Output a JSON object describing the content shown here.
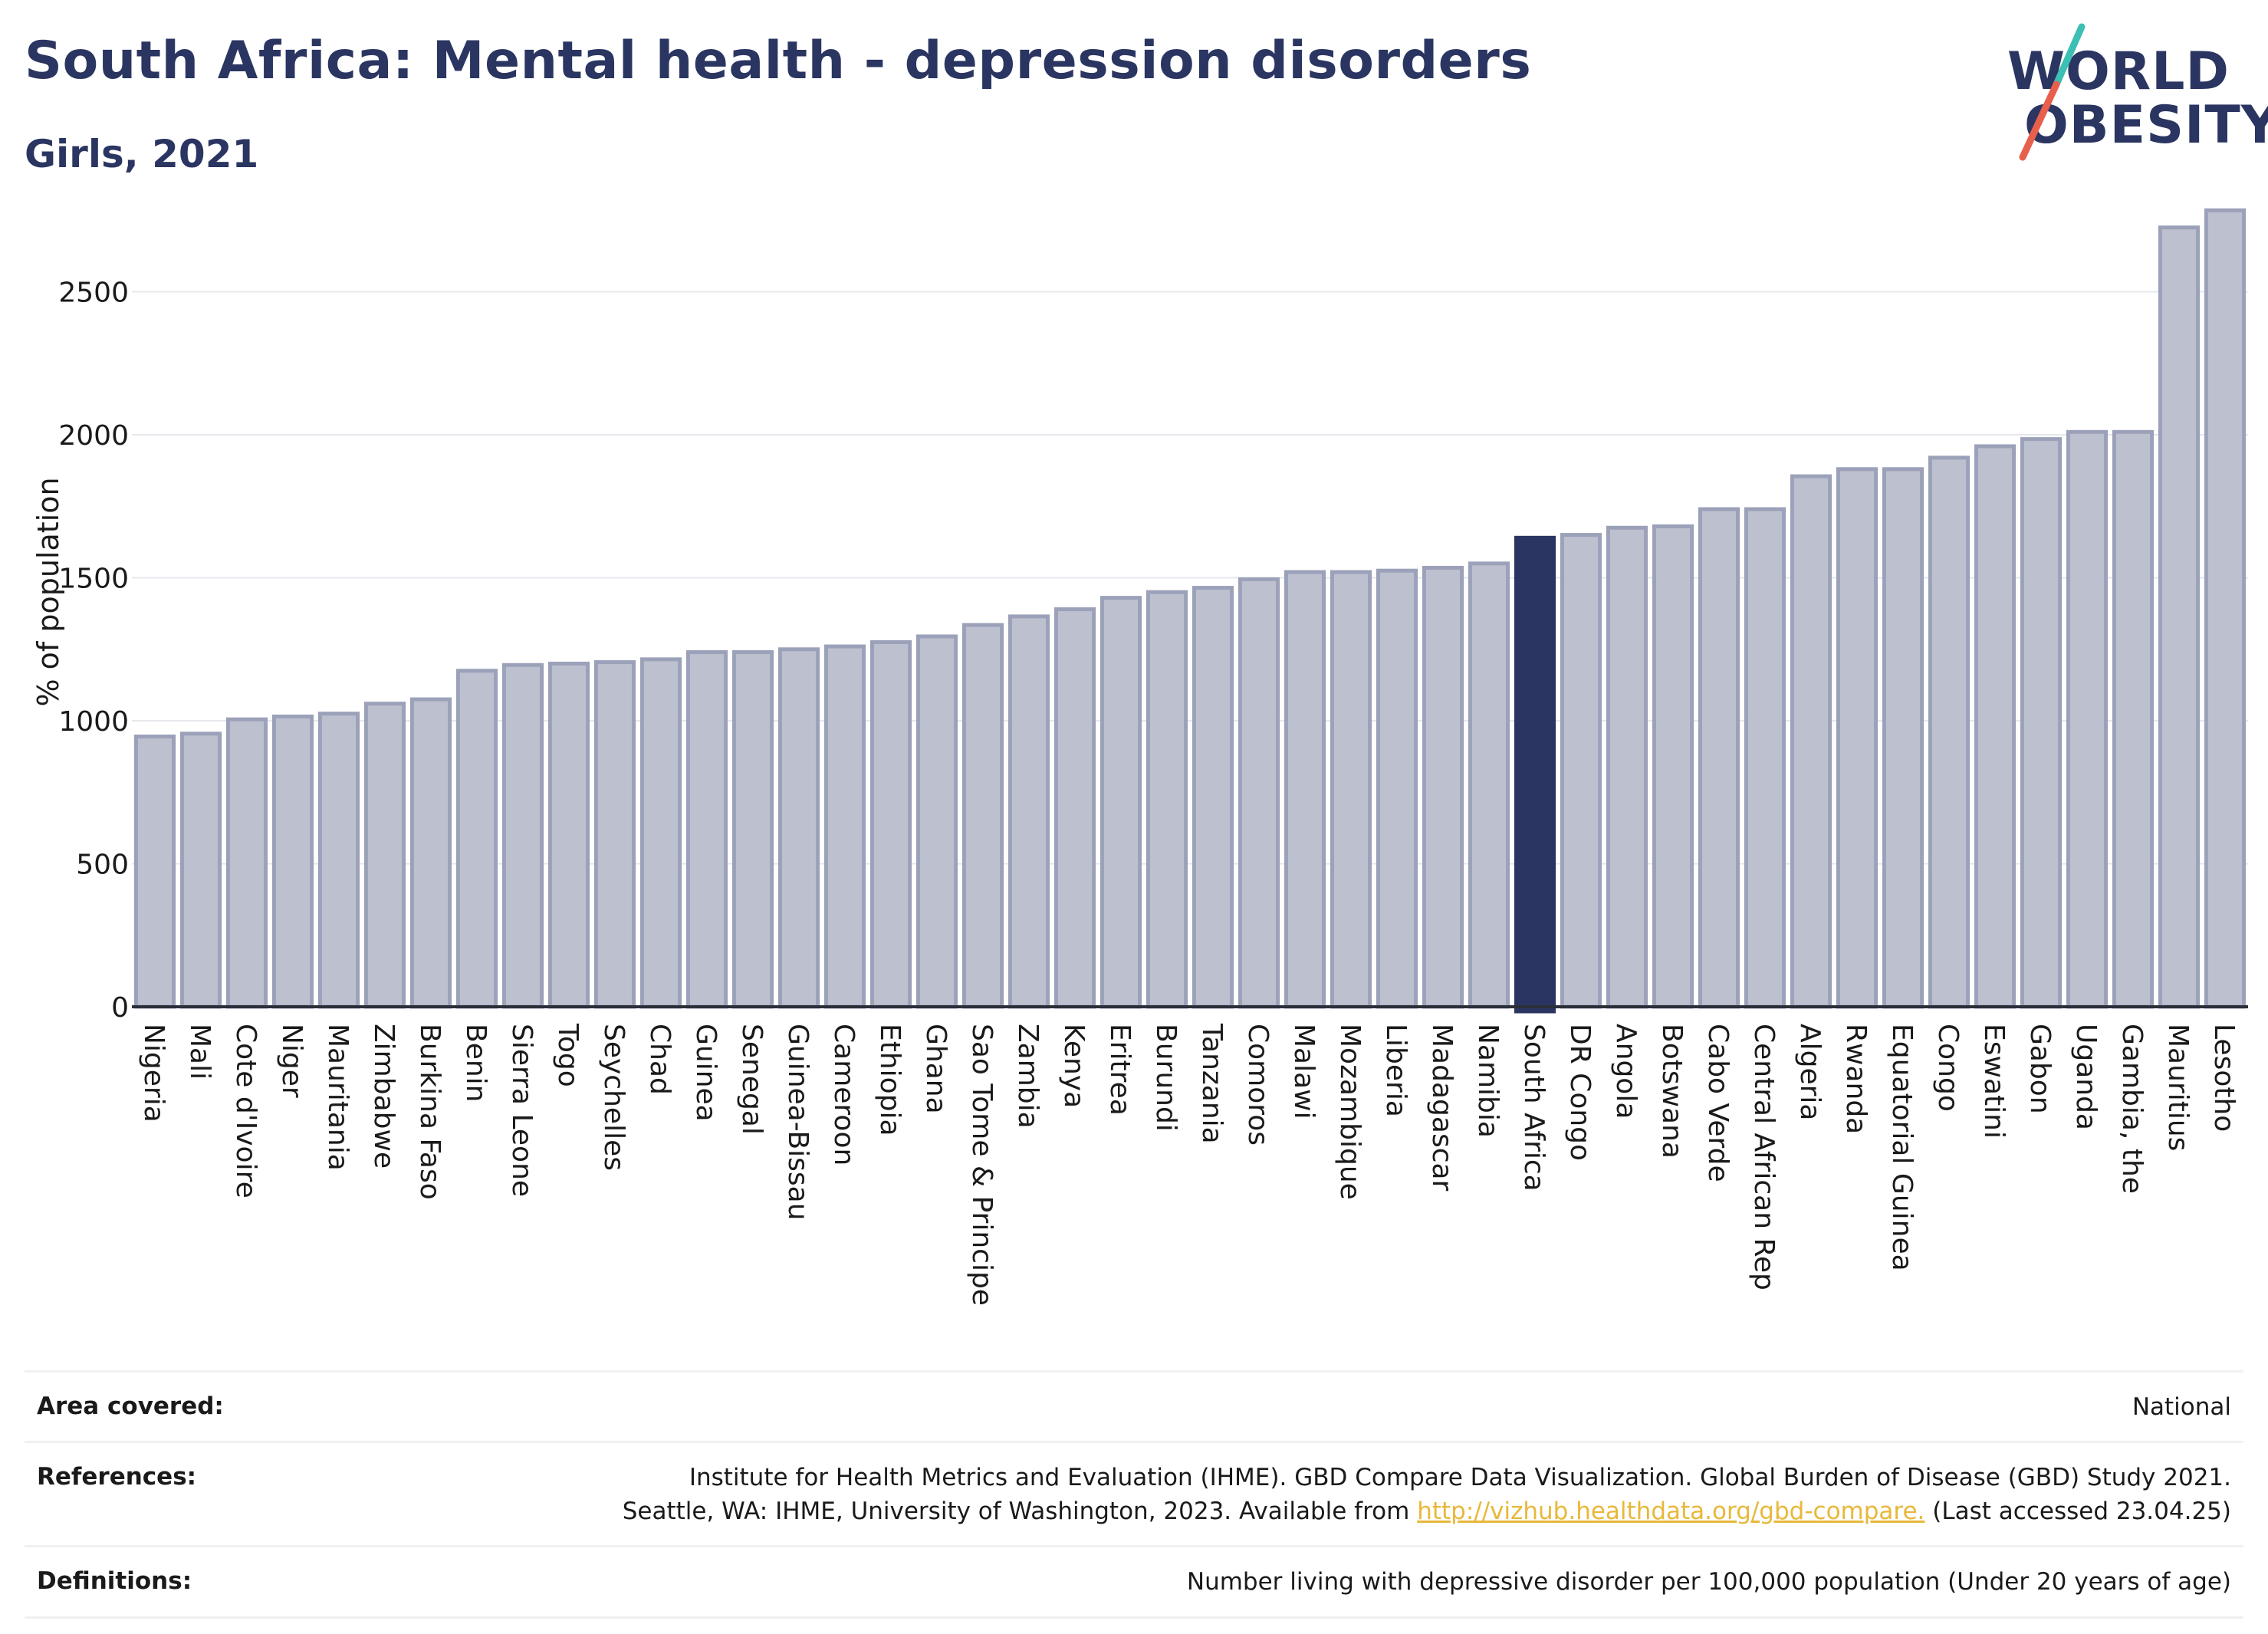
{
  "header": {
    "title": "South Africa: Mental health - depression disorders",
    "subtitle": "Girls, 2021"
  },
  "logo": {
    "line1": "WORLD",
    "line2": "OBESITY",
    "colors": {
      "text": "#2b3561",
      "slash_top": "#3cbfb4",
      "slash_bottom": "#e8604c"
    }
  },
  "chart_data": {
    "type": "bar",
    "title": "",
    "xlabel": "",
    "ylabel": "% of population",
    "ylim": [
      0,
      2850
    ],
    "yticks": [
      0,
      500,
      1000,
      1500,
      2000,
      2500
    ],
    "grid": true,
    "highlight": "South Africa",
    "colors": {
      "bar": "#bcc0cf",
      "bar_border": "#9ba1b9",
      "highlight": "#2b3561"
    },
    "categories": [
      "Nigeria",
      "Mali",
      "Cote d'Ivoire",
      "Niger",
      "Mauritania",
      "Zimbabwe",
      "Burkina Faso",
      "Benin",
      "Sierra Leone",
      "Togo",
      "Seychelles",
      "Chad",
      "Guinea",
      "Senegal",
      "Guinea-Bissau",
      "Cameroon",
      "Ethiopia",
      "Ghana",
      "Sao Tome & Principe",
      "Zambia",
      "Kenya",
      "Eritrea",
      "Burundi",
      "Tanzania",
      "Comoros",
      "Malawi",
      "Mozambique",
      "Liberia",
      "Madagascar",
      "Namibia",
      "South Africa",
      "DR Congo",
      "Angola",
      "Botswana",
      "Cabo Verde",
      "Central African Rep",
      "Algeria",
      "Rwanda",
      "Equatorial Guinea",
      "Congo",
      "Eswatini",
      "Gabon",
      "Uganda",
      "Gambia, the",
      "Mauritius",
      "Lesotho"
    ],
    "values": [
      945,
      955,
      1005,
      1015,
      1025,
      1060,
      1075,
      1175,
      1195,
      1200,
      1205,
      1215,
      1240,
      1240,
      1250,
      1260,
      1275,
      1295,
      1335,
      1365,
      1390,
      1430,
      1450,
      1465,
      1495,
      1520,
      1520,
      1525,
      1535,
      1550,
      1640,
      1650,
      1675,
      1680,
      1740,
      1740,
      1855,
      1880,
      1880,
      1920,
      1960,
      1985,
      2010,
      2010,
      2725,
      2785
    ]
  },
  "footer": {
    "area_label": "Area covered:",
    "area_value": "National",
    "references_label": "References:",
    "references_line1": "Institute for Health Metrics and Evaluation (IHME). GBD Compare Data Visualization. Global Burden of Disease (GBD) Study 2021.",
    "references_line2_pre": "Seattle, WA: IHME, University of Washington, 2023. Available from ",
    "references_link": "http://vizhub.healthdata.org/gbd-compare.",
    "references_line2_post": " (Last accessed 23.04.25)",
    "definitions_label": "Definitions:",
    "definitions_value": "Number living with depressive disorder per 100,000 population (Under 20 years of age)"
  }
}
